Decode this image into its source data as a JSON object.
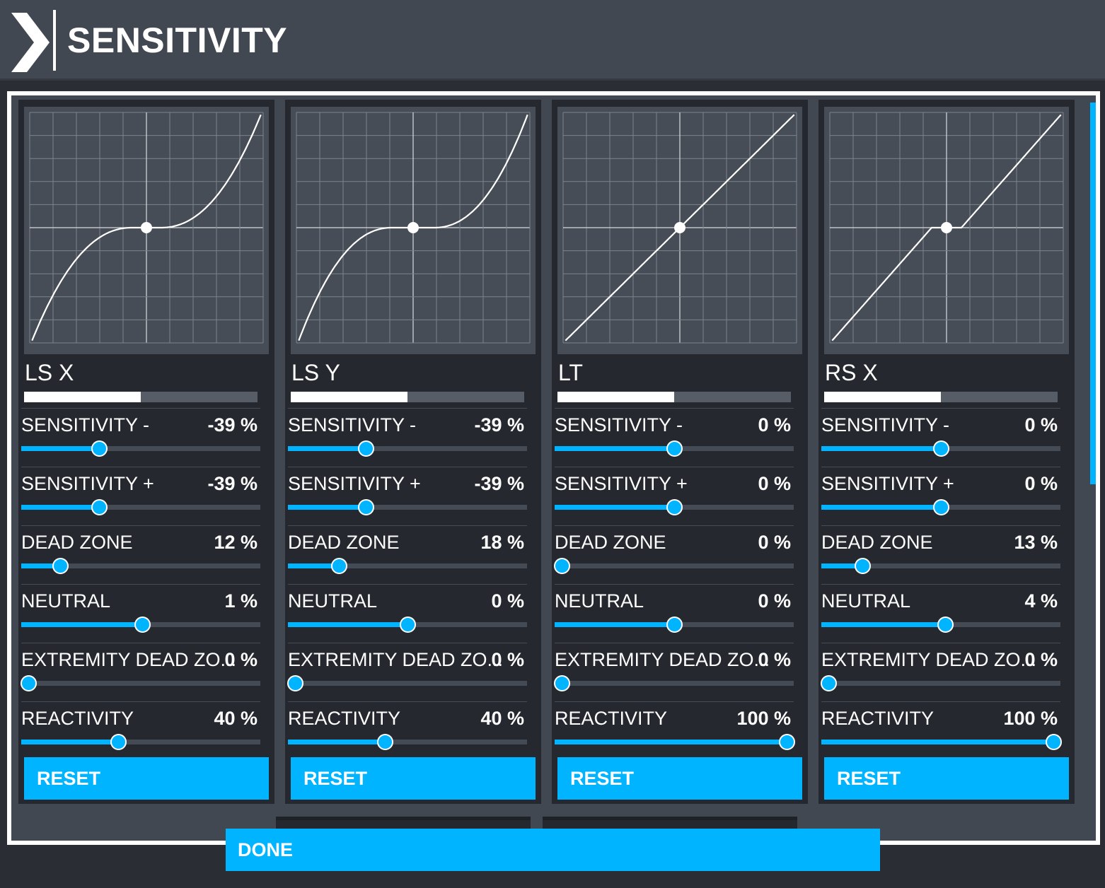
{
  "header": {
    "title": "SENSITIVITY"
  },
  "colors": {
    "accent": "#00b4ff",
    "panel_bg": "#25292f",
    "graph_bg": "#474d56",
    "header_bg": "#424851"
  },
  "panels": [
    {
      "axis": "LS X",
      "curve": {
        "exponent": 2.2,
        "deadzone": 0.12
      },
      "axis_bar_fill": 0.5,
      "settings": [
        {
          "label": "SENSITIVITY -",
          "value": "-39 %",
          "level": 0.315
        },
        {
          "label": "SENSITIVITY +",
          "value": "-39 %",
          "level": 0.315
        },
        {
          "label": "DEAD ZONE",
          "value": "12 %",
          "level": 0.14
        },
        {
          "label": "NEUTRAL",
          "value": "1 %",
          "level": 0.505
        },
        {
          "label": "EXTREMITY DEAD ZO...",
          "value": "0 %",
          "level": 0.0
        },
        {
          "label": "REACTIVITY",
          "value": "40 %",
          "level": 0.4
        }
      ],
      "reset_label": "RESET"
    },
    {
      "axis": "LS Y",
      "curve": {
        "exponent": 2.2,
        "deadzone": 0.18
      },
      "axis_bar_fill": 0.5,
      "settings": [
        {
          "label": "SENSITIVITY -",
          "value": "-39 %",
          "level": 0.315
        },
        {
          "label": "SENSITIVITY +",
          "value": "-39 %",
          "level": 0.315
        },
        {
          "label": "DEAD ZONE",
          "value": "18 %",
          "level": 0.195
        },
        {
          "label": "NEUTRAL",
          "value": "0 %",
          "level": 0.5
        },
        {
          "label": "EXTREMITY DEAD ZO...",
          "value": "0 %",
          "level": 0.0
        },
        {
          "label": "REACTIVITY",
          "value": "40 %",
          "level": 0.4
        }
      ],
      "reset_label": "RESET"
    },
    {
      "axis": "LT",
      "curve": {
        "exponent": 1.0,
        "deadzone": 0.0
      },
      "axis_bar_fill": 0.5,
      "settings": [
        {
          "label": "SENSITIVITY -",
          "value": "0 %",
          "level": 0.5
        },
        {
          "label": "SENSITIVITY +",
          "value": "0 %",
          "level": 0.5
        },
        {
          "label": "DEAD ZONE",
          "value": "0 %",
          "level": 0.0
        },
        {
          "label": "NEUTRAL",
          "value": "0 %",
          "level": 0.5
        },
        {
          "label": "EXTREMITY DEAD ZO...",
          "value": "0 %",
          "level": 0.0
        },
        {
          "label": "REACTIVITY",
          "value": "100 %",
          "level": 1.0
        }
      ],
      "reset_label": "RESET"
    },
    {
      "axis": "RS X",
      "curve": {
        "exponent": 1.0,
        "deadzone": 0.13
      },
      "axis_bar_fill": 0.5,
      "settings": [
        {
          "label": "SENSITIVITY -",
          "value": "0 %",
          "level": 0.5
        },
        {
          "label": "SENSITIVITY +",
          "value": "0 %",
          "level": 0.5
        },
        {
          "label": "DEAD ZONE",
          "value": "13 %",
          "level": 0.15
        },
        {
          "label": "NEUTRAL",
          "value": "4 %",
          "level": 0.52
        },
        {
          "label": "EXTREMITY DEAD ZO...",
          "value": "0 %",
          "level": 0.0
        },
        {
          "label": "REACTIVITY",
          "value": "100 %",
          "level": 1.0
        }
      ],
      "reset_label": "RESET"
    }
  ],
  "footer": {
    "done_label": "DONE"
  }
}
